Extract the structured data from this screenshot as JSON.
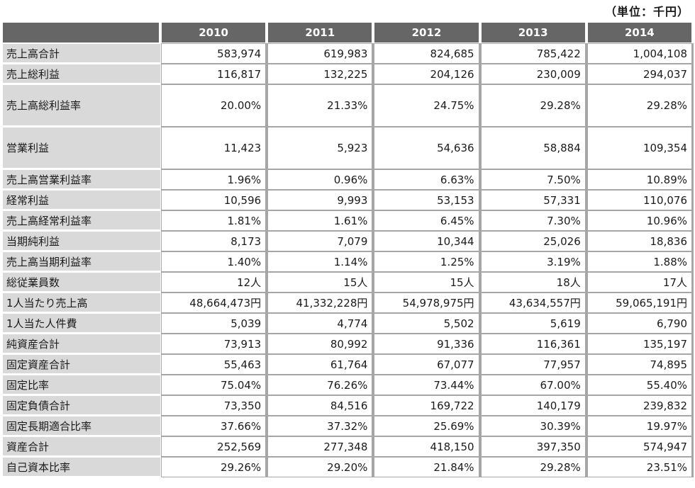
{
  "unit_label": "（単位：千円）",
  "header": {
    "years": [
      "2010",
      "2011",
      "2012",
      "2013",
      "2014"
    ]
  },
  "rows": [
    {
      "label": "売上高合計",
      "values": [
        "583,974",
        "619,983",
        "824,685",
        "785,422",
        "1,004,108"
      ]
    },
    {
      "label": "売上総利益",
      "values": [
        "116,817",
        "132,225",
        "204,126",
        "230,009",
        "294,037"
      ]
    },
    {
      "label": "売上高総利益率",
      "values": [
        "20.00%",
        "21.33%",
        "24.75%",
        "29.28%",
        "29.28%"
      ]
    },
    {
      "label": "営業利益",
      "values": [
        "11,423",
        "5,923",
        "54,636",
        "58,884",
        "109,354"
      ]
    },
    {
      "label": "売上高営業利益率",
      "values": [
        "1.96%",
        "0.96%",
        "6.63%",
        "7.50%",
        "10.89%"
      ]
    },
    {
      "label": "経常利益",
      "values": [
        "10,596",
        "9,993",
        "53,153",
        "57,331",
        "110,076"
      ]
    },
    {
      "label": "売上高経常利益率",
      "values": [
        "1.81%",
        "1.61%",
        "6.45%",
        "7.30%",
        "10.96%"
      ]
    },
    {
      "label": "当期純利益",
      "values": [
        "8,173",
        "7,079",
        "10,344",
        "25,026",
        "18,836"
      ]
    },
    {
      "label": "売上高当期利益率",
      "values": [
        "1.40%",
        "1.14%",
        "1.25%",
        "3.19%",
        "1.88%"
      ]
    },
    {
      "label": "総従業員数",
      "values": [
        "12人",
        "15人",
        "15人",
        "18人",
        "17人"
      ]
    },
    {
      "label": "1人当たり売上高",
      "values": [
        "48,664,473円",
        "41,332,228円",
        "54,978,975円",
        "43,634,557円",
        "59,065,191円"
      ]
    },
    {
      "label": "1人当た人件費",
      "values": [
        "5,039",
        "4,774",
        "5,502",
        "5,619",
        "6,790"
      ]
    },
    {
      "label": "純資産合計",
      "values": [
        "73,913",
        "80,992",
        "91,336",
        "116,361",
        "135,197"
      ]
    },
    {
      "label": "固定資産合計",
      "values": [
        "55,463",
        "61,764",
        "67,077",
        "77,957",
        "74,895"
      ]
    },
    {
      "label": "固定比率",
      "values": [
        "75.04%",
        "76.26%",
        "73.44%",
        "67.00%",
        "55.40%"
      ]
    },
    {
      "label": "固定負債合計",
      "values": [
        "73,350",
        "84,516",
        "169,722",
        "140,179",
        "239,832"
      ]
    },
    {
      "label": "固定長期適合比率",
      "values": [
        "37.66%",
        "37.32%",
        "25.69%",
        "30.39%",
        "19.97%"
      ]
    },
    {
      "label": "資産合計",
      "values": [
        "252,569",
        "277,348",
        "418,150",
        "397,350",
        "574,947"
      ]
    },
    {
      "label": "自己資本比率",
      "values": [
        "29.26%",
        "29.20%",
        "21.84%",
        "29.28%",
        "23.51%"
      ]
    }
  ]
}
